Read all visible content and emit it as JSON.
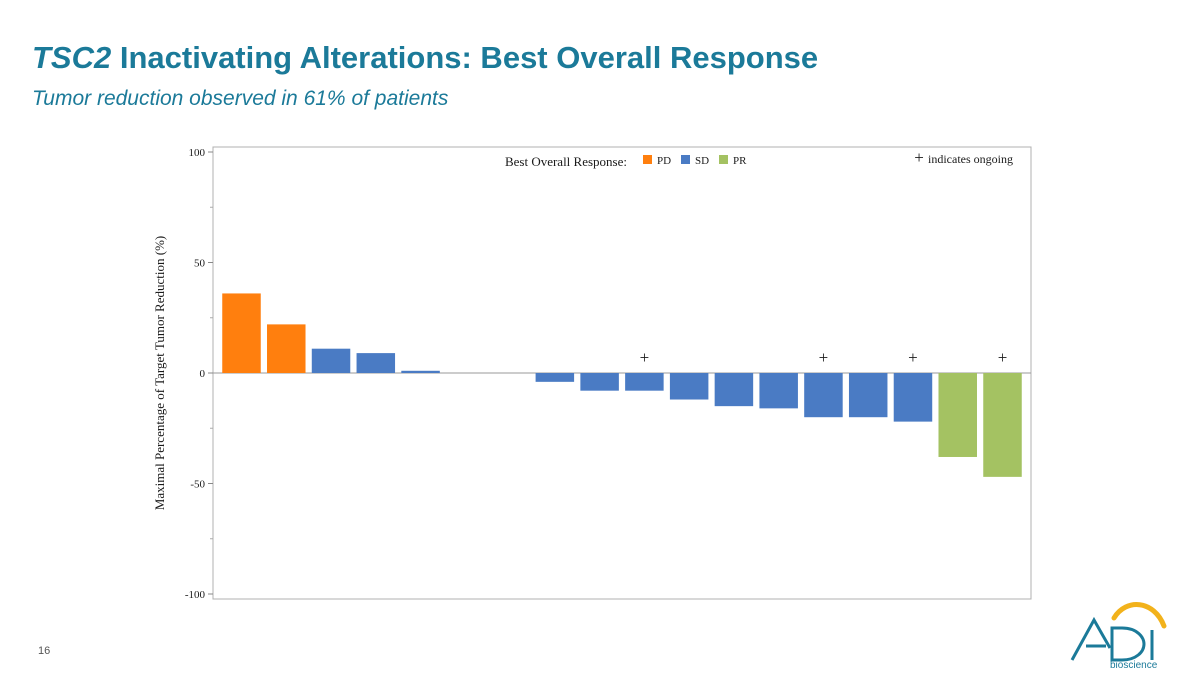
{
  "slide": {
    "title_gene": "TSC2",
    "title_rest": " Inactivating Alterations: Best Overall Response",
    "subtitle": "Tumor reduction observed in 61% of patients",
    "page_number": "16"
  },
  "logo": {
    "brand": "ADI",
    "tagline": "bioscience",
    "colors": {
      "mark": "#1b7a99",
      "arc": "#f2b21b"
    }
  },
  "chart_data": {
    "type": "bar",
    "title": "",
    "xlabel": "",
    "ylabel": "Maximal Percentage of Target Tumor Reduction (%)",
    "ylim": [
      -100,
      100
    ],
    "yticks": [
      100,
      50,
      0,
      -50,
      -100
    ],
    "ytick_labels": [
      "100",
      "50",
      "0",
      "-50",
      "-100"
    ],
    "legend": {
      "title": "Best Overall Response:",
      "position": "top-center",
      "entries": [
        {
          "label": "PD",
          "color": "#ff7f0e"
        },
        {
          "label": "SD",
          "color": "#4a7bc4"
        },
        {
          "label": "PR",
          "color": "#a4c262"
        }
      ]
    },
    "ongoing_note": {
      "symbol": "+",
      "text": "indicates ongoing",
      "position": "top-right"
    },
    "bars": [
      {
        "value": 36,
        "response": "PD",
        "ongoing": false
      },
      {
        "value": 22,
        "response": "PD",
        "ongoing": false
      },
      {
        "value": 11,
        "response": "SD",
        "ongoing": false
      },
      {
        "value": 9,
        "response": "SD",
        "ongoing": false
      },
      {
        "value": 1,
        "response": "SD",
        "ongoing": false
      },
      {
        "value": 0,
        "response": "SD",
        "ongoing": false
      },
      {
        "value": 0,
        "response": "SD",
        "ongoing": false
      },
      {
        "value": -4,
        "response": "SD",
        "ongoing": false
      },
      {
        "value": -8,
        "response": "SD",
        "ongoing": false
      },
      {
        "value": -8,
        "response": "SD",
        "ongoing": true
      },
      {
        "value": -12,
        "response": "SD",
        "ongoing": false
      },
      {
        "value": -15,
        "response": "SD",
        "ongoing": false
      },
      {
        "value": -16,
        "response": "SD",
        "ongoing": false
      },
      {
        "value": -20,
        "response": "SD",
        "ongoing": true
      },
      {
        "value": -20,
        "response": "SD",
        "ongoing": false
      },
      {
        "value": -22,
        "response": "SD",
        "ongoing": true
      },
      {
        "value": -38,
        "response": "PR",
        "ongoing": false
      },
      {
        "value": -47,
        "response": "PR",
        "ongoing": true
      }
    ],
    "grid": false
  }
}
